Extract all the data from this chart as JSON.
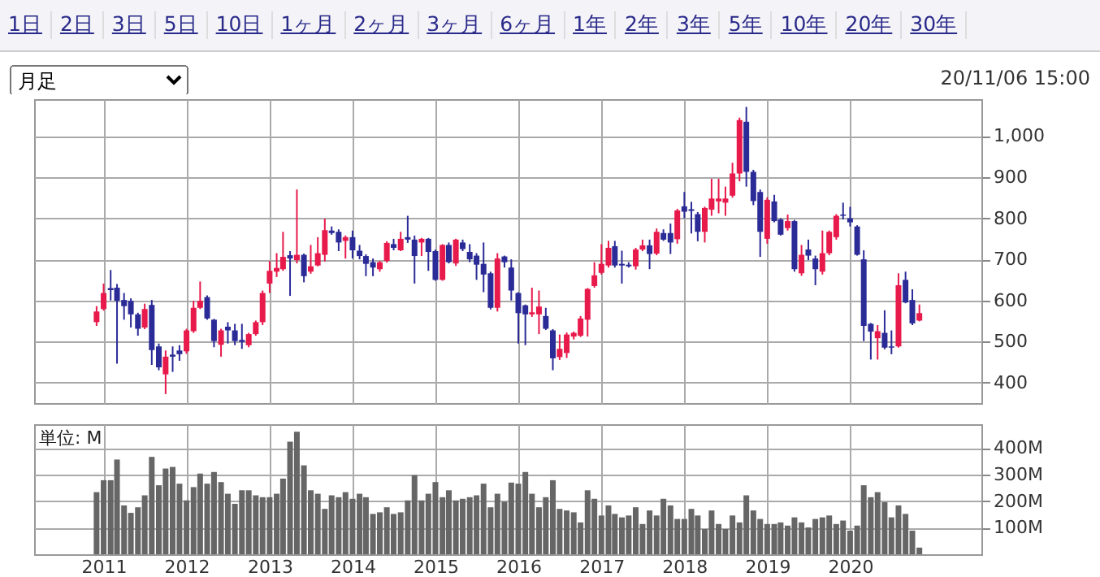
{
  "chart_data": [
    {
      "type": "candlestick",
      "annotations": [
        "1日",
        "2日",
        "3日",
        "5日",
        "10日",
        "1ヶ月",
        "2ヶ月",
        "3ヶ月",
        "6ヶ月",
        "1年",
        "2年",
        "3年",
        "5年",
        "10年",
        "20年",
        "30年",
        "月足",
        "20/11/06 15:00"
      ],
      "x": [
        "2010-12",
        "2011-01",
        "2011-02",
        "2011-03",
        "2011-04",
        "2011-05",
        "2011-06",
        "2011-07",
        "2011-08",
        "2011-09",
        "2011-10",
        "2011-11",
        "2011-12",
        "2012-01",
        "2012-02",
        "2012-03",
        "2012-04",
        "2012-05",
        "2012-06",
        "2012-07",
        "2012-08",
        "2012-09",
        "2012-10",
        "2012-11",
        "2012-12",
        "2013-01",
        "2013-02",
        "2013-03",
        "2013-04",
        "2013-05",
        "2013-06",
        "2013-07",
        "2013-08",
        "2013-09",
        "2013-10",
        "2013-11",
        "2013-12",
        "2014-01",
        "2014-02",
        "2014-03",
        "2014-04",
        "2014-05",
        "2014-06",
        "2014-07",
        "2014-08",
        "2014-09",
        "2014-10",
        "2014-11",
        "2014-12",
        "2015-01",
        "2015-02",
        "2015-03",
        "2015-04",
        "2015-05",
        "2015-06",
        "2015-07",
        "2015-08",
        "2015-09",
        "2015-10",
        "2015-11",
        "2015-12",
        "2016-01",
        "2016-02",
        "2016-03",
        "2016-04",
        "2016-05",
        "2016-06",
        "2016-07",
        "2016-08",
        "2016-09",
        "2016-10",
        "2016-11",
        "2016-12",
        "2017-01",
        "2017-02",
        "2017-03",
        "2017-04",
        "2017-05",
        "2017-06",
        "2017-07",
        "2017-08",
        "2017-09",
        "2017-10",
        "2017-11",
        "2017-12",
        "2018-01",
        "2018-02",
        "2018-03",
        "2018-04",
        "2018-05",
        "2018-06",
        "2018-07",
        "2018-08",
        "2018-09",
        "2018-10",
        "2018-11",
        "2018-12",
        "2019-01",
        "2019-02",
        "2019-03",
        "2019-04",
        "2019-05",
        "2019-06",
        "2019-07",
        "2019-08",
        "2019-09",
        "2019-10",
        "2019-11",
        "2019-12",
        "2020-01",
        "2020-02",
        "2020-03",
        "2020-04",
        "2020-05",
        "2020-06",
        "2020-07",
        "2020-08",
        "2020-09",
        "2020-10",
        "2020-11"
      ],
      "ohlc": [
        [
          547,
          586,
          538,
          573
        ],
        [
          579,
          641,
          575,
          618
        ],
        [
          630,
          674,
          600,
          625
        ],
        [
          631,
          640,
          446,
          599
        ],
        [
          601,
          618,
          553,
          586
        ],
        [
          599,
          605,
          534,
          566
        ],
        [
          566,
          570,
          514,
          531
        ],
        [
          534,
          592,
          530,
          579
        ],
        [
          589,
          601,
          443,
          479
        ],
        [
          488,
          495,
          430,
          437
        ],
        [
          420,
          478,
          372,
          463
        ],
        [
          468,
          488,
          426,
          463
        ],
        [
          478,
          491,
          453,
          469
        ],
        [
          476,
          531,
          470,
          527
        ],
        [
          525,
          599,
          521,
          582
        ],
        [
          582,
          646,
          579,
          599
        ],
        [
          608,
          612,
          553,
          556
        ],
        [
          553,
          555,
          486,
          501
        ],
        [
          492,
          531,
          463,
          527
        ],
        [
          536,
          547,
          495,
          527
        ],
        [
          527,
          543,
          491,
          501
        ],
        [
          504,
          543,
          482,
          499
        ],
        [
          491,
          521,
          486,
          518
        ],
        [
          518,
          551,
          514,
          547
        ],
        [
          547,
          624,
          540,
          618
        ],
        [
          641,
          696,
          618,
          672
        ],
        [
          670,
          715,
          657,
          679
        ],
        [
          676,
          767,
          672,
          706
        ],
        [
          710,
          720,
          611,
          702
        ],
        [
          698,
          870,
          690,
          711
        ],
        [
          711,
          714,
          644,
          659
        ],
        [
          670,
          735,
          665,
          683
        ],
        [
          685,
          754,
          683,
          715
        ],
        [
          711,
          799,
          695,
          771
        ],
        [
          770,
          780,
          760,
          764
        ],
        [
          767,
          773,
          720,
          741
        ],
        [
          745,
          758,
          702,
          754
        ],
        [
          754,
          770,
          702,
          722
        ],
        [
          721,
          735,
          700,
          708
        ],
        [
          708,
          712,
          659,
          689
        ],
        [
          693,
          702,
          659,
          680
        ],
        [
          676,
          696,
          670,
          693
        ],
        [
          696,
          744,
          692,
          740
        ],
        [
          737,
          750,
          722,
          728
        ],
        [
          722,
          767,
          720,
          750
        ],
        [
          754,
          806,
          740,
          748
        ],
        [
          748,
          758,
          641,
          708
        ],
        [
          741,
          752,
          708,
          750
        ],
        [
          750,
          752,
          672,
          718
        ],
        [
          720,
          724,
          648,
          650
        ],
        [
          650,
          737,
          648,
          735
        ],
        [
          735,
          741,
          690,
          693
        ],
        [
          690,
          750,
          684,
          748
        ],
        [
          741,
          748,
          720,
          725
        ],
        [
          718,
          737,
          693,
          700
        ],
        [
          709,
          715,
          650,
          687
        ],
        [
          689,
          741,
          620,
          663
        ],
        [
          666,
          670,
          578,
          582
        ],
        [
          582,
          715,
          573,
          702
        ],
        [
          707,
          709,
          680,
          693
        ],
        [
          680,
          700,
          600,
          624
        ],
        [
          618,
          620,
          495,
          569
        ],
        [
          588,
          590,
          491,
          566
        ],
        [
          566,
          631,
          560,
          571
        ],
        [
          566,
          624,
          518,
          585
        ],
        [
          562,
          582,
          528,
          531
        ],
        [
          527,
          530,
          430,
          459
        ],
        [
          462,
          517,
          455,
          482
        ],
        [
          472,
          522,
          460,
          517
        ],
        [
          512,
          524,
          505,
          521
        ],
        [
          514,
          562,
          511,
          556
        ],
        [
          553,
          630,
          512,
          628
        ],
        [
          635,
          693,
          631,
          661
        ],
        [
          667,
          737,
          663,
          689
        ],
        [
          685,
          745,
          680,
          728
        ],
        [
          732,
          745,
          680,
          685
        ],
        [
          689,
          721,
          641,
          685
        ],
        [
          687,
          693,
          680,
          683
        ],
        [
          683,
          728,
          675,
          724
        ],
        [
          724,
          748,
          720,
          734
        ],
        [
          734,
          748,
          676,
          713
        ],
        [
          714,
          775,
          710,
          767
        ],
        [
          764,
          773,
          745,
          748
        ],
        [
          764,
          787,
          713,
          741
        ],
        [
          749,
          823,
          738,
          819
        ],
        [
          829,
          864,
          800,
          816
        ],
        [
          822,
          840,
          763,
          818
        ],
        [
          810,
          815,
          744,
          767
        ],
        [
          767,
          828,
          741,
          825
        ],
        [
          821,
          896,
          806,
          848
        ],
        [
          841,
          896,
          812,
          848
        ],
        [
          838,
          877,
          806,
          848
        ],
        [
          855,
          935,
          850,
          909
        ],
        [
          909,
          1045,
          890,
          1039
        ],
        [
          1035,
          1071,
          877,
          913
        ],
        [
          913,
          918,
          832,
          842
        ],
        [
          864,
          870,
          706,
          767
        ],
        [
          750,
          851,
          738,
          845
        ],
        [
          841,
          857,
          790,
          793
        ],
        [
          797,
          800,
          758,
          760
        ],
        [
          776,
          809,
          770,
          793
        ],
        [
          793,
          796,
          670,
          676
        ],
        [
          666,
          735,
          660,
          711
        ],
        [
          724,
          748,
          698,
          709
        ],
        [
          702,
          709,
          637,
          676
        ],
        [
          670,
          770,
          663,
          715
        ],
        [
          715,
          770,
          710,
          767
        ],
        [
          754,
          810,
          748,
          806
        ],
        [
          809,
          838,
          797,
          806
        ],
        [
          800,
          828,
          780,
          790
        ],
        [
          780,
          783,
          709,
          711
        ],
        [
          700,
          722,
          501,
          538
        ],
        [
          543,
          545,
          456,
          524
        ],
        [
          508,
          540,
          456,
          525
        ],
        [
          521,
          576,
          481,
          485
        ],
        [
          488,
          527,
          469,
          485
        ],
        [
          488,
          666,
          485,
          637
        ],
        [
          650,
          670,
          593,
          595
        ],
        [
          601,
          627,
          540,
          544
        ],
        [
          551,
          590,
          549,
          569
        ]
      ],
      "colors": [
        "#e8194b",
        "#e8194b",
        "#2b2b98",
        "#2b2b98",
        "#2b2b98",
        "#2b2b98",
        "#2b2b98",
        "#e8194b",
        "#2b2b98",
        "#2b2b98",
        "#e8194b",
        "#2b2b98",
        "#2b2b98",
        "#e8194b",
        "#e8194b",
        "#e8194b",
        "#2b2b98",
        "#2b2b98",
        "#e8194b",
        "#2b2b98",
        "#2b2b98",
        "#2b2b98",
        "#e8194b",
        "#e8194b",
        "#e8194b",
        "#e8194b",
        "#e8194b",
        "#e8194b",
        "#2b2b98",
        "#e8194b",
        "#2b2b98",
        "#e8194b",
        "#e8194b",
        "#e8194b",
        "#2b2b98",
        "#2b2b98",
        "#e8194b",
        "#2b2b98",
        "#2b2b98",
        "#2b2b98",
        "#2b2b98",
        "#e8194b",
        "#e8194b",
        "#2b2b98",
        "#e8194b",
        "#2b2b98",
        "#2b2b98",
        "#e8194b",
        "#2b2b98",
        "#2b2b98",
        "#e8194b",
        "#2b2b98",
        "#e8194b",
        "#2b2b98",
        "#2b2b98",
        "#2b2b98",
        "#2b2b98",
        "#2b2b98",
        "#e8194b",
        "#2b2b98",
        "#2b2b98",
        "#2b2b98",
        "#2b2b98",
        "#e8194b",
        "#e8194b",
        "#2b2b98",
        "#2b2b98",
        "#e8194b",
        "#e8194b",
        "#e8194b",
        "#e8194b",
        "#e8194b",
        "#e8194b",
        "#e8194b",
        "#e8194b",
        "#2b2b98",
        "#2b2b98",
        "#2b2b98",
        "#e8194b",
        "#e8194b",
        "#2b2b98",
        "#e8194b",
        "#2b2b98",
        "#2b2b98",
        "#e8194b",
        "#2b2b98",
        "#2b2b98",
        "#2b2b98",
        "#e8194b",
        "#e8194b",
        "#e8194b",
        "#e8194b",
        "#e8194b",
        "#e8194b",
        "#2b2b98",
        "#2b2b98",
        "#2b2b98",
        "#e8194b",
        "#2b2b98",
        "#2b2b98",
        "#e8194b",
        "#2b2b98",
        "#e8194b",
        "#2b2b98",
        "#2b2b98",
        "#e8194b",
        "#e8194b",
        "#e8194b",
        "#2b2b98",
        "#2b2b98",
        "#2b2b98",
        "#2b2b98",
        "#2b2b98",
        "#e8194b",
        "#2b2b98",
        "#2b2b98",
        "#e8194b",
        "#2b2b98",
        "#2b2b98",
        "#e8194b"
      ],
      "xlim": [
        "2010-03",
        "2021-08"
      ],
      "xticks": [
        "2011",
        "2012",
        "2013",
        "2014",
        "2015",
        "2016",
        "2017",
        "2018",
        "2019",
        "2020"
      ],
      "ylim": [
        350,
        1090
      ],
      "yticks": [
        400,
        500,
        600,
        700,
        800,
        900,
        {
          "value": 1000,
          "label": "1,000"
        }
      ],
      "grid": true,
      "tick_labels": "y"
    },
    {
      "type": "bar",
      "annotations": [
        "単位: M"
      ],
      "x": [
        "2010-12",
        "2011-01",
        "2011-02",
        "2011-03",
        "2011-04",
        "2011-05",
        "2011-06",
        "2011-07",
        "2011-08",
        "2011-09",
        "2011-10",
        "2011-11",
        "2011-12",
        "2012-01",
        "2012-02",
        "2012-03",
        "2012-04",
        "2012-05",
        "2012-06",
        "2012-07",
        "2012-08",
        "2012-09",
        "2012-10",
        "2012-11",
        "2012-12",
        "2013-01",
        "2013-02",
        "2013-03",
        "2013-04",
        "2013-05",
        "2013-06",
        "2013-07",
        "2013-08",
        "2013-09",
        "2013-10",
        "2013-11",
        "2013-12",
        "2014-01",
        "2014-02",
        "2014-03",
        "2014-04",
        "2014-05",
        "2014-06",
        "2014-07",
        "2014-08",
        "2014-09",
        "2014-10",
        "2014-11",
        "2014-12",
        "2015-01",
        "2015-02",
        "2015-03",
        "2015-04",
        "2015-05",
        "2015-06",
        "2015-07",
        "2015-08",
        "2015-09",
        "2015-10",
        "2015-11",
        "2015-12",
        "2016-01",
        "2016-02",
        "2016-03",
        "2016-04",
        "2016-05",
        "2016-06",
        "2016-07",
        "2016-08",
        "2016-09",
        "2016-10",
        "2016-11",
        "2016-12",
        "2017-01",
        "2017-02",
        "2017-03",
        "2017-04",
        "2017-05",
        "2017-06",
        "2017-07",
        "2017-08",
        "2017-09",
        "2017-10",
        "2017-11",
        "2017-12",
        "2018-01",
        "2018-02",
        "2018-03",
        "2018-04",
        "2018-05",
        "2018-06",
        "2018-07",
        "2018-08",
        "2018-09",
        "2018-10",
        "2018-11",
        "2018-12",
        "2019-01",
        "2019-02",
        "2019-03",
        "2019-04",
        "2019-05",
        "2019-06",
        "2019-07",
        "2019-08",
        "2019-09",
        "2019-10",
        "2019-11",
        "2019-12",
        "2020-01",
        "2020-02",
        "2020-03",
        "2020-04",
        "2020-05",
        "2020-06",
        "2020-07",
        "2020-08",
        "2020-09",
        "2020-10",
        "2020-11"
      ],
      "values": [
        234,
        279,
        279,
        357,
        184,
        156,
        177,
        222,
        367,
        260,
        323,
        329,
        266,
        203,
        253,
        304,
        266,
        310,
        272,
        228,
        190,
        241,
        241,
        222,
        215,
        215,
        228,
        285,
        424,
        462,
        335,
        241,
        228,
        171,
        222,
        215,
        234,
        209,
        228,
        215,
        152,
        158,
        177,
        152,
        158,
        203,
        298,
        203,
        228,
        272,
        215,
        241,
        203,
        209,
        215,
        222,
        266,
        177,
        228,
        198,
        270,
        266,
        310,
        228,
        177,
        215,
        279,
        171,
        165,
        158,
        120,
        241,
        209,
        146,
        184,
        152,
        139,
        146,
        177,
        114,
        165,
        146,
        209,
        184,
        133,
        133,
        171,
        146,
        95,
        165,
        114,
        95,
        146,
        120,
        222,
        165,
        133,
        114,
        114,
        120,
        108,
        139,
        120,
        101,
        133,
        139,
        146,
        114,
        127,
        89,
        108,
        260,
        215,
        234,
        196,
        139,
        184,
        152,
        89,
        25
      ],
      "color": "#666666",
      "xlim": [
        "2010-03",
        "2021-08"
      ],
      "xticks": [
        "2011",
        "2012",
        "2013",
        "2014",
        "2015",
        "2016",
        "2017",
        "2018",
        "2019",
        "2020"
      ],
      "ylim": [
        0,
        490
      ],
      "yticks": [
        {
          "value": 100,
          "label": "100M"
        },
        {
          "value": 200,
          "label": "200M"
        },
        {
          "value": 300,
          "label": "300M"
        },
        {
          "value": 400,
          "label": "400M"
        }
      ],
      "grid": true
    }
  ]
}
